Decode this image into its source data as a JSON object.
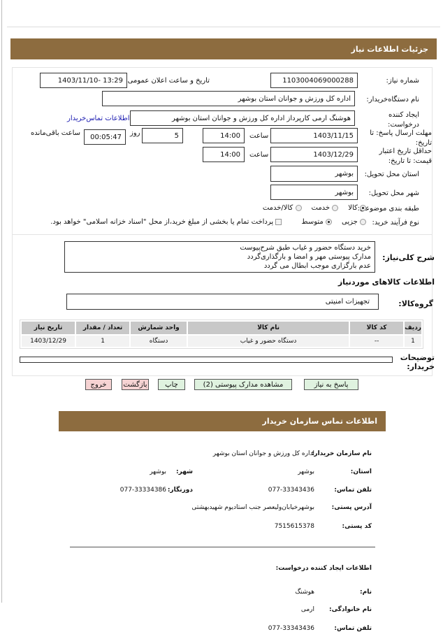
{
  "page_title": "جزئیات اطلاعات نیاز",
  "fields": {
    "need_number_label": "شماره نیاز:",
    "need_number": "1103004069000288",
    "announce_label": "تاریخ و ساعت اعلان عمومی:",
    "announce_value": "1403/11/10- 13:29",
    "buyer_org_label": "نام دستگاه‌خریدار:",
    "buyer_org": "اداره کل ورزش و جوانان استان بوشهر",
    "creator_label": "ایجاد کننده درخواست:",
    "creator": "هوشنگ ارمی کارپرداز اداره کل ورزش و جوانان استان بوشهر",
    "contact_link": "اطلاعات تماس‌خریدار",
    "deadline_label": "مهلت ارسال پاسخ: تا تاریخ:",
    "deadline_date": "1403/11/15",
    "time_label": "ساعت",
    "deadline_time": "14:00",
    "days_label": "روز",
    "days": "5",
    "remaining_label": "ساعت باقی‌مانده",
    "remaining": "00:05:47",
    "validity_label": "حداقل تاریخ اعتبار قیمت: تا تاریخ:",
    "validity_date": "1403/12/29",
    "validity_time": "14:00",
    "province_label": "استان محل تحویل:",
    "province": "بوشهر",
    "city_label": "شهر محل تحویل:",
    "city": "بوشهر",
    "category_label": "طبقه بندی موضوعی:",
    "category_options": [
      "کالا",
      "خدمت",
      "کالا/خدمت"
    ],
    "category_selected": "کالا",
    "process_label": "نوع فرآیند خرید:",
    "process_options": [
      "جزیی",
      "متوسط"
    ],
    "process_selected": "متوسط",
    "payment_note": "پرداخت تمام یا بخشی از مبلغ خرید،از محل \"اسناد خزانه اسلامی\" خواهد بود."
  },
  "description": {
    "label": "شرح کلی‌نیاز:",
    "lines": [
      "خرید دستگاه حضور و غیاب طبق شرح‌پیوست",
      "مدارک پیوستی مهر و امضا و بارگذاری‌گردد",
      "عدم بارگزاری موجب ابطال می گردد"
    ]
  },
  "goods": {
    "title": "اطلاعات کالاهای موردنیاز",
    "group_label": "گروه‌کالا:",
    "group": "تجهیزات امنیتی",
    "columns": [
      "ردیف",
      "کد کالا",
      "نام کالا",
      "واحد شمارش",
      "تعداد / مقدار",
      "تاریخ نیاز"
    ],
    "rows": [
      [
        "1",
        "--",
        "دستگاه حضور و غیاب",
        "دستگاه",
        "1",
        "1403/12/29"
      ]
    ]
  },
  "buyer_notes_label": "توضیحات خریدار:",
  "buttons": {
    "reply": "پاسخ به نیاز",
    "attachments": "مشاهده مدارک پیوستی (2)",
    "print": "چاپ",
    "back": "بازگشت",
    "exit": "خروج"
  },
  "contact": {
    "title": "اطلاعات تماس سازمان خریدار",
    "org_label": "نام سازمان خریدار:",
    "org": "اداره کل ورزش و جوانان استان بوشهر",
    "province_label": "استان:",
    "province": "بوشهر",
    "city_label": "شهر:",
    "city": "بوشهر",
    "phone_label": "تلفن تماس:",
    "phone": "077-33343436",
    "fax_label": "دورنگار:",
    "fax": "077-33334386",
    "address_label": "آدرس پستی:",
    "address": "بوشهرخیابان‌ولیعصر جنب استادیوم شهیدبهشتی",
    "postal_label": "کد پستی:",
    "postal": "7515615378",
    "creator_title": "اطلاعات ایجاد کننده درخواست:",
    "first_name_label": "نام:",
    "first_name": "هوشنگ",
    "last_name_label": "نام خانوادگی:",
    "last_name": "ارمی",
    "creator_phone_label": "تلفن تماس:",
    "creator_phone": "077-33343436"
  },
  "colors": {
    "header_bar": "#8d6c3f",
    "link": "#1a1ab0",
    "green_button": "#dff2df",
    "pink_button": "#f6d3d3"
  }
}
